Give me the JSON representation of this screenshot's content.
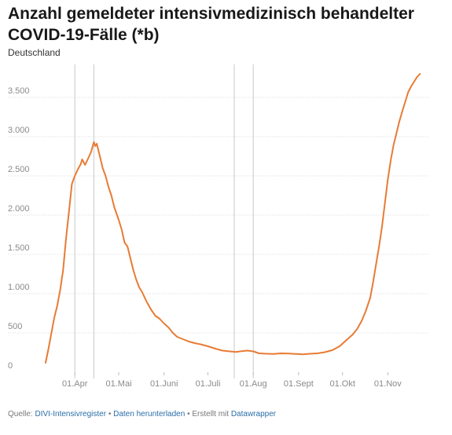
{
  "title": "Anzahl gemeldeter intensivmedizinisch behandelter COVID-19-Fälle (*b)",
  "subtitle": "Deutschland",
  "footer": {
    "prefix": "Quelle: ",
    "source_link": "DIVI-Intensivregister",
    "sep1": " • ",
    "download_link": "Daten herunterladen",
    "sep2": " • Erstellt mit ",
    "tool_link": "Datawrapper"
  },
  "colors": {
    "line": "#e87b34",
    "grid": "#e3e3e3",
    "marker": "#c8c8c8",
    "accent_link": "#2b6ea8"
  },
  "chart_data": {
    "type": "line",
    "title": "Anzahl gemeldeter intensivmedizinisch behandelter COVID-19-Fälle (*b)",
    "subtitle": "Deutschland",
    "xlabel": "",
    "ylabel": "",
    "ylim": [
      0,
      3800
    ],
    "xlim": [
      "2020-03-12",
      "2020-11-25"
    ],
    "yticks": [
      0,
      500,
      1000,
      1500,
      2000,
      2500,
      3000,
      3500
    ],
    "ytick_labels": [
      "0",
      "500",
      "1.000",
      "1.500",
      "2.000",
      "2.500",
      "3.000",
      "3.500"
    ],
    "xticks": [
      "2020-04-01",
      "2020-05-01",
      "2020-06-01",
      "2020-07-01",
      "2020-08-01",
      "2020-09-01",
      "2020-10-01",
      "2020-11-01"
    ],
    "xtick_labels": [
      "01.Apr",
      "01.Mai",
      "01.Juni",
      "01.Juli",
      "01.Aug",
      "01.Sept",
      "01.Okt",
      "01.Nov"
    ],
    "grid": true,
    "reference_lines_x": [
      "2020-04-01",
      "2020-04-14",
      "2020-07-19",
      "2020-08-01"
    ],
    "series": [
      {
        "points": [
          [
            "2020-03-12",
            120
          ],
          [
            "2020-03-14",
            300
          ],
          [
            "2020-03-16",
            500
          ],
          [
            "2020-03-18",
            700
          ],
          [
            "2020-03-20",
            850
          ],
          [
            "2020-03-22",
            1050
          ],
          [
            "2020-03-24",
            1300
          ],
          [
            "2020-03-26",
            1700
          ],
          [
            "2020-03-28",
            2050
          ],
          [
            "2020-03-30",
            2400
          ],
          [
            "2020-04-01",
            2500
          ],
          [
            "2020-04-03",
            2580
          ],
          [
            "2020-04-05",
            2650
          ],
          [
            "2020-04-06",
            2710
          ],
          [
            "2020-04-08",
            2640
          ],
          [
            "2020-04-10",
            2720
          ],
          [
            "2020-04-12",
            2800
          ],
          [
            "2020-04-14",
            2930
          ],
          [
            "2020-04-15",
            2880
          ],
          [
            "2020-04-16",
            2910
          ],
          [
            "2020-04-18",
            2760
          ],
          [
            "2020-04-20",
            2600
          ],
          [
            "2020-04-22",
            2500
          ],
          [
            "2020-04-24",
            2360
          ],
          [
            "2020-04-26",
            2250
          ],
          [
            "2020-04-28",
            2100
          ],
          [
            "2020-05-01",
            1940
          ],
          [
            "2020-05-03",
            1820
          ],
          [
            "2020-05-05",
            1650
          ],
          [
            "2020-05-07",
            1600
          ],
          [
            "2020-05-09",
            1450
          ],
          [
            "2020-05-11",
            1300
          ],
          [
            "2020-05-13",
            1180
          ],
          [
            "2020-05-15",
            1080
          ],
          [
            "2020-05-17",
            1020
          ],
          [
            "2020-05-20",
            900
          ],
          [
            "2020-05-23",
            800
          ],
          [
            "2020-05-26",
            720
          ],
          [
            "2020-05-29",
            680
          ],
          [
            "2020-06-01",
            620
          ],
          [
            "2020-06-04",
            570
          ],
          [
            "2020-06-07",
            500
          ],
          [
            "2020-06-10",
            450
          ],
          [
            "2020-06-14",
            420
          ],
          [
            "2020-06-18",
            390
          ],
          [
            "2020-06-22",
            370
          ],
          [
            "2020-06-26",
            355
          ],
          [
            "2020-07-01",
            330
          ],
          [
            "2020-07-06",
            300
          ],
          [
            "2020-07-11",
            275
          ],
          [
            "2020-07-16",
            265
          ],
          [
            "2020-07-20",
            258
          ],
          [
            "2020-07-24",
            268
          ],
          [
            "2020-07-28",
            275
          ],
          [
            "2020-08-01",
            265
          ],
          [
            "2020-08-05",
            240
          ],
          [
            "2020-08-10",
            235
          ],
          [
            "2020-08-15",
            232
          ],
          [
            "2020-08-20",
            240
          ],
          [
            "2020-08-25",
            238
          ],
          [
            "2020-08-30",
            233
          ],
          [
            "2020-09-04",
            228
          ],
          [
            "2020-09-09",
            235
          ],
          [
            "2020-09-14",
            240
          ],
          [
            "2020-09-19",
            255
          ],
          [
            "2020-09-24",
            280
          ],
          [
            "2020-09-29",
            330
          ],
          [
            "2020-10-02",
            380
          ],
          [
            "2020-10-05",
            430
          ],
          [
            "2020-10-08",
            480
          ],
          [
            "2020-10-11",
            550
          ],
          [
            "2020-10-14",
            650
          ],
          [
            "2020-10-17",
            780
          ],
          [
            "2020-10-20",
            950
          ],
          [
            "2020-10-22",
            1150
          ],
          [
            "2020-10-24",
            1380
          ],
          [
            "2020-10-26",
            1600
          ],
          [
            "2020-10-28",
            1850
          ],
          [
            "2020-10-30",
            2150
          ],
          [
            "2020-11-01",
            2450
          ],
          [
            "2020-11-03",
            2700
          ],
          [
            "2020-11-05",
            2900
          ],
          [
            "2020-11-07",
            3050
          ],
          [
            "2020-11-09",
            3200
          ],
          [
            "2020-11-11",
            3330
          ],
          [
            "2020-11-13",
            3450
          ],
          [
            "2020-11-15",
            3570
          ],
          [
            "2020-11-17",
            3640
          ],
          [
            "2020-11-19",
            3700
          ],
          [
            "2020-11-21",
            3760
          ],
          [
            "2020-11-23",
            3800
          ]
        ]
      }
    ]
  }
}
